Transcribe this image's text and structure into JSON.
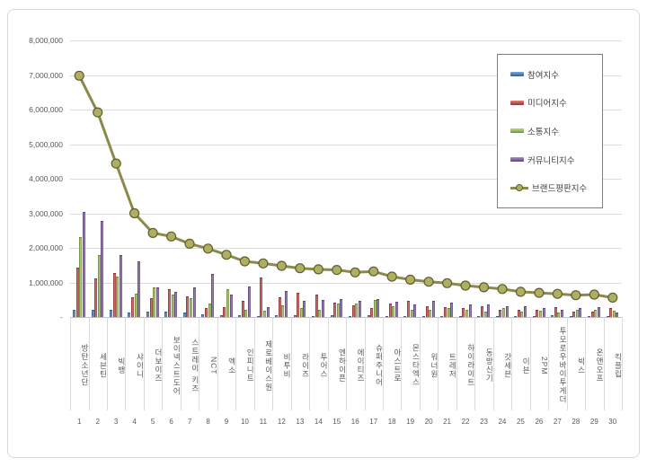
{
  "chart_data": {
    "type": "bar",
    "title": "",
    "xlabel": "",
    "ylabel": "",
    "grid": true,
    "legend_position": "right-top",
    "y_axis": {
      "min": 0,
      "max": 8000000,
      "tick_interval": 1000000,
      "tick_labels_top_to_bottom": [
        "8,000,000",
        "7,000,000",
        "6,000,000",
        "5,000,000",
        "4,000,000",
        "3,000,000",
        "2,000,000",
        "1,000,000",
        "-"
      ]
    },
    "categories": [
      "방탄소년단",
      "세븐틴",
      "빅뱅",
      "샤이니",
      "더보이즈",
      "보이넥스트도어",
      "스트레이 키즈",
      "NCT",
      "엑소",
      "인피니트",
      "제로베이스원",
      "비투비",
      "라이즈",
      "투어스",
      "엔하이픈",
      "에이티즈",
      "슈퍼주니어",
      "아스트로",
      "몬스타엑스",
      "워너원",
      "트레저",
      "하이라이트",
      "동방신기",
      "갓세븐",
      "이븐",
      "2PM",
      "투모로우바이투게더",
      "빅스",
      "온앤오프",
      "킥플립"
    ],
    "ranks": [
      "1",
      "2",
      "3",
      "4",
      "5",
      "6",
      "7",
      "8",
      "9",
      "10",
      "11",
      "12",
      "13",
      "14",
      "15",
      "16",
      "17",
      "18",
      "19",
      "20",
      "21",
      "22",
      "23",
      "24",
      "25",
      "26",
      "27",
      "28",
      "29",
      "30"
    ],
    "series": [
      {
        "name": "참여지수",
        "type": "bar",
        "color": "#4F81BD",
        "values": [
          210000,
          220000,
          200000,
          140000,
          170000,
          160000,
          120000,
          80000,
          60000,
          50000,
          40000,
          50000,
          50000,
          40000,
          50000,
          40000,
          50000,
          40000,
          40000,
          40000,
          40000,
          40000,
          30000,
          30000,
          30000,
          20000,
          50000,
          30000,
          20000,
          20000
        ]
      },
      {
        "name": "미디어지수",
        "type": "bar",
        "color": "#C0504D",
        "values": [
          1420000,
          1120000,
          1270000,
          580000,
          550000,
          800000,
          610000,
          250000,
          280000,
          470000,
          1150000,
          580000,
          690000,
          650000,
          420000,
          340000,
          250000,
          380000,
          480000,
          300000,
          280000,
          250000,
          300000,
          210000,
          220000,
          220000,
          280000,
          160000,
          150000,
          250000
        ]
      },
      {
        "name": "소통지수",
        "type": "bar",
        "color": "#9BBB59",
        "values": [
          2300000,
          1800000,
          1180000,
          680000,
          850000,
          650000,
          540000,
          400000,
          800000,
          200000,
          180000,
          350000,
          250000,
          200000,
          380000,
          400000,
          500000,
          300000,
          200000,
          210000,
          250000,
          210000,
          170000,
          250000,
          160000,
          180000,
          140000,
          220000,
          200000,
          180000
        ]
      },
      {
        "name": "커뮤니티지수",
        "type": "bar",
        "color": "#8064A2",
        "values": [
          3050000,
          2780000,
          1790000,
          1600000,
          860000,
          720000,
          850000,
          1250000,
          640000,
          890000,
          280000,
          760000,
          470000,
          490000,
          510000,
          480000,
          520000,
          450000,
          360000,
          470000,
          410000,
          360000,
          360000,
          320000,
          310000,
          270000,
          200000,
          260000,
          280000,
          120000
        ]
      },
      {
        "name": "브랜드평판지수",
        "type": "line",
        "color": "#8A8A4A",
        "marker_fill": "#AFAF63",
        "marker_edge": "#5E5E30",
        "values": [
          6980000,
          5920000,
          4440000,
          3000000,
          2430000,
          2330000,
          2120000,
          1980000,
          1800000,
          1610000,
          1550000,
          1480000,
          1410000,
          1380000,
          1360000,
          1290000,
          1320000,
          1170000,
          1080000,
          1020000,
          980000,
          910000,
          860000,
          810000,
          730000,
          700000,
          670000,
          630000,
          650000,
          560000
        ]
      }
    ],
    "colors": {
      "grid": "#dcdcdc",
      "axis_line": "#bfbfbf",
      "axis_text": "#595959",
      "legend_border": "#7f7f7f",
      "card_border": "#d8d8d8"
    }
  }
}
